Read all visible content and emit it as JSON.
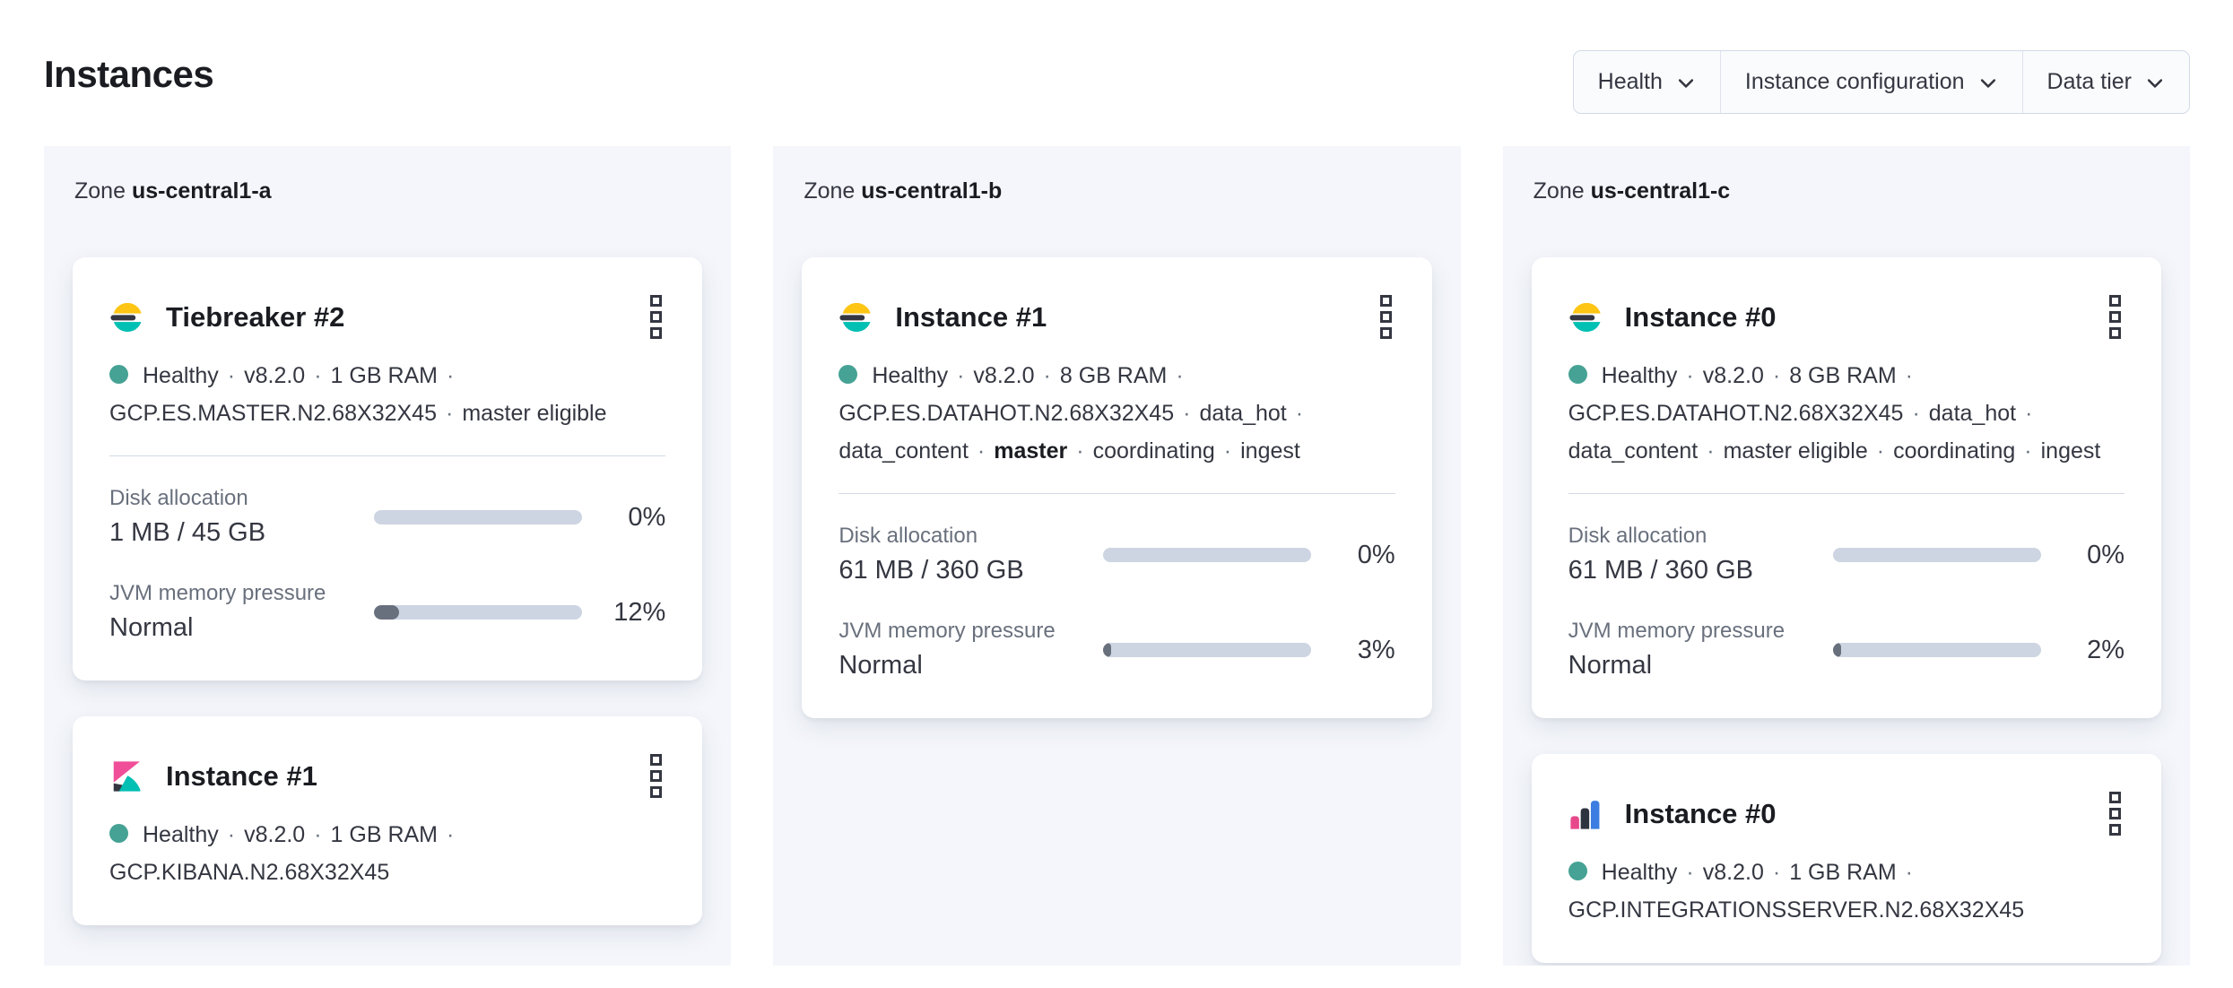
{
  "header": {
    "title": "Instances"
  },
  "filters": [
    {
      "label": "Health"
    },
    {
      "label": "Instance configuration"
    },
    {
      "label": "Data tier"
    }
  ],
  "colors": {
    "health_dot": "#45a294",
    "bar_track": "#cdd5e2",
    "bar_fill": "#69707d",
    "divider": "#d3dae6",
    "zone_bg": "#f4f6fb",
    "filter_bg": "#fafbfd",
    "border": "#d3dae6",
    "logo_yellow": "#fec514",
    "logo_dark": "#343741",
    "logo_teal": "#00bfb3",
    "logo_pink": "#f04e98",
    "logo_blue": "#3b7de0"
  },
  "zones": [
    {
      "label_prefix": "Zone",
      "name": "us-central1-a",
      "cards": [
        {
          "icon": "elasticsearch-logo",
          "title": "Tiebreaker #2",
          "menu_icon": "boxes-vertical-icon",
          "status_lines": [
            "Healthy · v8.2.0 · 1 GB RAM ·",
            "GCP.ES.MASTER.N2.68X32X45 · master eligible"
          ],
          "metrics": [
            {
              "label": "Disk allocation",
              "value": "1 MB / 45 GB",
              "percent": 0,
              "percent_label": "0%"
            },
            {
              "label": "JVM memory pressure",
              "value": "Normal",
              "percent": 12,
              "percent_label": "12%"
            }
          ]
        },
        {
          "icon": "kibana-logo",
          "title": "Instance #1",
          "menu_icon": "boxes-vertical-icon",
          "status_lines": [
            "Healthy · v8.2.0 · 1 GB RAM ·",
            "GCP.KIBANA.N2.68X32X45"
          ],
          "metrics": []
        }
      ]
    },
    {
      "label_prefix": "Zone",
      "name": "us-central1-b",
      "cards": [
        {
          "icon": "elasticsearch-logo",
          "title": "Instance #1",
          "menu_icon": "boxes-vertical-icon",
          "status_lines": [
            "Healthy · v8.2.0 · 8 GB RAM ·",
            "GCP.ES.DATAHOT.N2.68X32X45 · data_hot ·",
            "data_content · **master** · coordinating · ingest"
          ],
          "metrics": [
            {
              "label": "Disk allocation",
              "value": "61 MB / 360 GB",
              "percent": 0,
              "percent_label": "0%"
            },
            {
              "label": "JVM memory pressure",
              "value": "Normal",
              "percent": 3,
              "percent_label": "3%"
            }
          ]
        }
      ]
    },
    {
      "label_prefix": "Zone",
      "name": "us-central1-c",
      "cards": [
        {
          "icon": "elasticsearch-logo",
          "title": "Instance #0",
          "menu_icon": "boxes-vertical-icon",
          "status_lines": [
            "Healthy · v8.2.0 · 8 GB RAM ·",
            "GCP.ES.DATAHOT.N2.68X32X45 · data_hot ·",
            "data_content · master eligible · coordinating · ingest"
          ],
          "metrics": [
            {
              "label": "Disk allocation",
              "value": "61 MB / 360 GB",
              "percent": 0,
              "percent_label": "0%"
            },
            {
              "label": "JVM memory pressure",
              "value": "Normal",
              "percent": 2,
              "percent_label": "2%"
            }
          ]
        },
        {
          "icon": "integrations-server-logo",
          "title": "Instance #0",
          "menu_icon": "boxes-vertical-icon",
          "status_lines": [
            "Healthy · v8.2.0 · 1 GB RAM ·",
            "GCP.INTEGRATIONSSERVER.N2.68X32X45"
          ],
          "metrics": []
        }
      ]
    }
  ]
}
